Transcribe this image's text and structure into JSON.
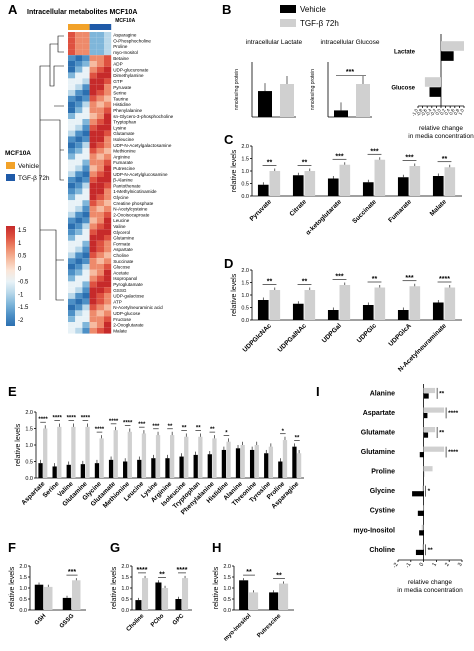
{
  "panel_letters": [
    "A",
    "B",
    "C",
    "D",
    "E",
    "F",
    "G",
    "H",
    "I"
  ],
  "legend": {
    "vehicle_label": "Vehicle",
    "tgf_label": "TGF-β 72h",
    "colors": {
      "vehicle": "#000000",
      "tgf": "#d0d0d0",
      "heat_vehicle": "#f2a229",
      "heat_tgf": "#1f5aa8"
    }
  },
  "heatmap": {
    "title": "Intracellular metabolites MCF10A",
    "group_header": "MCF10A",
    "side_title": "MCF10A",
    "side_vehicle": "Vehicle",
    "side_tgf": "TGF-β 72h",
    "scale_ticks": [
      "1.5",
      "1",
      "0.5",
      "0",
      "-0.5",
      "-1",
      "-1.5",
      "-2"
    ],
    "metabolites": [
      "Asparagine",
      "O-Phosphocholine",
      "Proline",
      "myo-Inositol",
      "Betaine",
      "ADP",
      "UDP-glucuronate",
      "Dimethylamine",
      "GTP",
      "Pyruvate",
      "Serine",
      "Taurine",
      "Histidine",
      "Phenylalanine",
      "sn-Glycero-3-phosphocholine",
      "Tryptophan",
      "Lysine",
      "Glutamate",
      "Isoleucine",
      "UDP-N-Acetylgalactosamine",
      "Methionine",
      "Arginine",
      "Fumarate",
      "Putrescine",
      "UDP-N-Acetylglucosamine",
      "β-Alanine",
      "Pantothenate",
      "1-Methylnicotinamide",
      "Glycine",
      "Creatine phosphate",
      "N-Acetylcysteine",
      "2-Oxoisocaproate",
      "Leucine",
      "Valine",
      "Glycerol",
      "Glutamine",
      "Formate",
      "Aspartate",
      "Choline",
      "Succinate",
      "Glucose",
      "Acetate",
      "Isopropanol",
      "Pyroglutamate",
      "GSSG",
      "UDP-galactose",
      "ATP",
      "N-Acetylneuraminic acid",
      "UDP-glucose",
      "Fructose",
      "2-Oxoglutarate",
      "Malate"
    ]
  },
  "chart_data": [
    {
      "panel": "B",
      "type": "bar",
      "title": "intracellular Lactate",
      "ylabel": "nmoles/mg protein",
      "categories": [
        "Vehicle",
        "TGF-β 72h"
      ],
      "values": [
        330,
        420
      ],
      "ylim": [
        0,
        700
      ]
    },
    {
      "panel": "B",
      "type": "bar",
      "title": "intracellular Glucose",
      "ylabel": "nmoles/mg protein",
      "categories": [
        "Vehicle",
        "TGF-β 72h"
      ],
      "values": [
        60,
        300
      ],
      "ylim": [
        0,
        500
      ],
      "significance": "***"
    },
    {
      "panel": "B",
      "type": "bar",
      "orientation": "horizontal",
      "categories": [
        "Lactate",
        "Glucose"
      ],
      "series": [
        {
          "name": "Vehicle",
          "values": [
            0.55,
            -0.5
          ]
        },
        {
          "name": "TGF-β 72h",
          "values": [
            1.0,
            -0.7
          ]
        }
      ],
      "xlabel": "relative change in media concentration",
      "ticks": [
        "-1.0",
        "-0.8",
        "-0.6",
        "-0.4",
        "-0.2",
        "0.0",
        "0.2",
        "0.4",
        "0.6",
        "0.8",
        "1.0"
      ],
      "xlim": [
        -1.0,
        1.0
      ]
    },
    {
      "panel": "C",
      "type": "bar",
      "ylabel": "relative levels",
      "categories": [
        "Pyruvate",
        "Citrate",
        "α-ketoglutarate",
        "Succinate",
        "Fumarate",
        "Malate"
      ],
      "series": [
        {
          "name": "Vehicle",
          "values": [
            0.45,
            0.83,
            0.7,
            0.55,
            0.75,
            0.8
          ]
        },
        {
          "name": "TGF-β 72h",
          "values": [
            1.0,
            1.0,
            1.25,
            1.45,
            1.2,
            1.15
          ]
        }
      ],
      "significance": [
        "**",
        "**",
        "***",
        "***",
        "***",
        "**"
      ],
      "ylim": [
        0,
        2.0
      ],
      "yticks": [
        "0.0",
        "0.5",
        "1.0",
        "1.5",
        "2.0"
      ]
    },
    {
      "panel": "D",
      "type": "bar",
      "ylabel": "relative levels",
      "categories": [
        "UDPGlcNAc",
        "UDPGalNAc",
        "UDPGal",
        "UDPGlc",
        "UDPGlcA",
        "N-Acetylneuraminate"
      ],
      "series": [
        {
          "name": "Vehicle",
          "values": [
            0.8,
            0.65,
            0.4,
            0.6,
            0.4,
            0.7
          ]
        },
        {
          "name": "TGF-β 72h",
          "values": [
            1.2,
            1.2,
            1.4,
            1.3,
            1.35,
            1.3
          ]
        }
      ],
      "significance": [
        "**",
        "**",
        "***",
        "**",
        "***",
        "****"
      ],
      "ylim": [
        0,
        2.0
      ],
      "yticks": [
        "0.0",
        "0.5",
        "1.0",
        "1.5",
        "2.0"
      ]
    },
    {
      "panel": "E",
      "type": "bar",
      "ylabel": "relative levels",
      "categories": [
        "Aspartate",
        "Serine",
        "Valine",
        "Glutamine",
        "Glycine",
        "Glutamate",
        "Methionine",
        "Leucine",
        "Lysine",
        "Arginine",
        "Isoleucine",
        "Tryptophan",
        "Phenylalanine",
        "Histidine",
        "Alanine",
        "Threonine",
        "Tyrosine",
        "Proline",
        "Asparagine"
      ],
      "series": [
        {
          "name": "Vehicle",
          "values": [
            0.45,
            0.35,
            0.4,
            0.42,
            0.45,
            0.55,
            0.5,
            0.55,
            0.6,
            0.6,
            0.65,
            0.7,
            0.72,
            0.85,
            0.9,
            0.85,
            0.75,
            0.5,
            0.95
          ]
        },
        {
          "name": "TGF-β 72h",
          "values": [
            1.5,
            1.55,
            1.55,
            1.55,
            1.2,
            1.45,
            1.4,
            1.35,
            1.3,
            1.3,
            1.25,
            1.25,
            1.2,
            1.1,
            1.0,
            1.0,
            0.95,
            1.15,
            0.75
          ]
        }
      ],
      "significance": [
        "****",
        "****",
        "****",
        "****",
        "****",
        "****",
        "****",
        "***",
        "***",
        "**",
        "**",
        "**",
        "**",
        "*",
        "",
        "",
        "",
        "*",
        "**"
      ],
      "ylim": [
        0,
        2.0
      ],
      "yticks": [
        "0.0",
        "0.5",
        "1.0",
        "1.5",
        "2.0"
      ]
    },
    {
      "panel": "F",
      "type": "bar",
      "ylabel": "relative levels",
      "categories": [
        "GSH",
        "GSSG"
      ],
      "series": [
        {
          "name": "Vehicle",
          "values": [
            1.15,
            0.55
          ]
        },
        {
          "name": "TGF-β 72h",
          "values": [
            1.05,
            1.35
          ]
        }
      ],
      "significance": [
        "",
        "***"
      ],
      "ylim": [
        0,
        2.0
      ],
      "yticks": [
        "0.0",
        "0.5",
        "1.0",
        "1.5",
        "2.0"
      ]
    },
    {
      "panel": "G",
      "type": "bar",
      "ylabel": "relative levels",
      "categories": [
        "Choline",
        "PCho",
        "GPC"
      ],
      "series": [
        {
          "name": "Vehicle",
          "values": [
            0.45,
            1.25,
            0.5
          ]
        },
        {
          "name": "TGF-β 72h",
          "values": [
            1.45,
            1.0,
            1.45
          ]
        }
      ],
      "significance": [
        "****",
        "**",
        "****"
      ],
      "ylim": [
        0,
        2.0
      ],
      "yticks": [
        "0.0",
        "0.5",
        "1.0",
        "1.5",
        "2.0"
      ]
    },
    {
      "panel": "H",
      "type": "bar",
      "ylabel": "relative levels",
      "categories": [
        "myo-Inositol",
        "Putrescine"
      ],
      "series": [
        {
          "name": "Vehicle",
          "values": [
            1.35,
            0.8
          ]
        },
        {
          "name": "TGF-β 72h",
          "values": [
            0.8,
            1.2
          ]
        }
      ],
      "significance": [
        "**",
        "**"
      ],
      "ylim": [
        0,
        2.0
      ],
      "yticks": [
        "0.0",
        "0.5",
        "1.0",
        "1.5",
        "2.0"
      ]
    },
    {
      "panel": "I",
      "type": "bar",
      "orientation": "horizontal",
      "xlabel": "relative change in media concentration",
      "categories": [
        "Alanine",
        "Aspartate",
        "Glutamate",
        "Glutamine",
        "Proline",
        "Glycine",
        "Cystine",
        "myo-Inositol",
        "Choline"
      ],
      "series": [
        {
          "name": "Vehicle",
          "values": [
            0.4,
            0.3,
            0.35,
            -0.3,
            0.0,
            -0.9,
            -0.45,
            -0.35,
            -0.6
          ]
        },
        {
          "name": "TGF-β 72h",
          "values": [
            0.9,
            1.6,
            0.9,
            1.6,
            0.7,
            -0.1,
            0.0,
            -0.15,
            -0.1
          ]
        }
      ],
      "significance": [
        "**",
        "****",
        "**",
        "****",
        "",
        "*",
        "",
        "",
        "**"
      ],
      "ticks": [
        "-2",
        "-1",
        "0",
        "1",
        "2",
        "3"
      ],
      "xlim": [
        -2,
        3
      ]
    }
  ]
}
